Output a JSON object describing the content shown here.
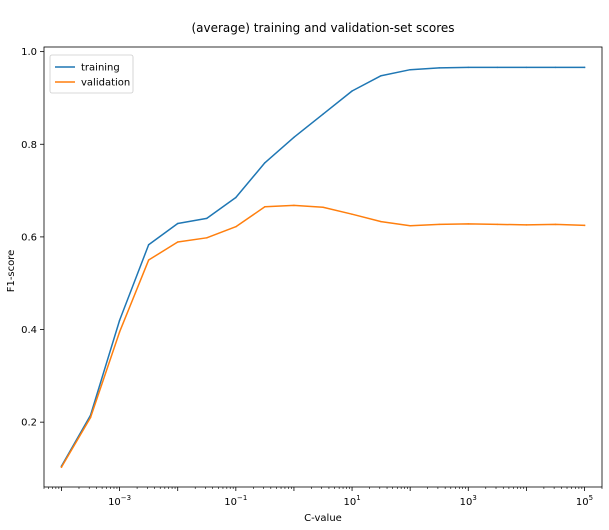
{
  "chart_data": {
    "type": "line",
    "title": "(average) training and validation-set scores",
    "xlabel": "C-value",
    "ylabel": "F1-score",
    "x_scale": "log",
    "xlim": [
      5e-05,
      200000
    ],
    "ylim": [
      0.06,
      1.01
    ],
    "x": [
      0.0001,
      0.000316,
      0.001,
      0.00316,
      0.01,
      0.0316,
      0.1,
      0.316,
      1,
      3.16,
      10,
      31.6,
      100,
      316,
      1000,
      3162,
      10000,
      31623,
      100000
    ],
    "series": [
      {
        "name": "training",
        "color": "#1f77b4",
        "values": [
          0.105,
          0.215,
          0.42,
          0.583,
          0.629,
          0.64,
          0.685,
          0.76,
          0.815,
          0.865,
          0.915,
          0.948,
          0.961,
          0.965,
          0.966,
          0.966,
          0.966,
          0.966,
          0.966
        ]
      },
      {
        "name": "validation",
        "color": "#ff7f0e",
        "values": [
          0.103,
          0.21,
          0.395,
          0.55,
          0.589,
          0.598,
          0.622,
          0.665,
          0.668,
          0.664,
          0.649,
          0.633,
          0.624,
          0.627,
          0.628,
          0.627,
          0.626,
          0.627,
          0.625
        ]
      }
    ],
    "x_ticks": [
      {
        "value": 0.001,
        "base": "10",
        "exp": "−3"
      },
      {
        "value": 0.1,
        "base": "10",
        "exp": "−1"
      },
      {
        "value": 10,
        "base": "10",
        "exp": "1"
      },
      {
        "value": 1000,
        "base": "10",
        "exp": "3"
      },
      {
        "value": 100000,
        "base": "10",
        "exp": "5"
      }
    ],
    "y_ticks": [
      {
        "value": 0.2,
        "label": "0.2"
      },
      {
        "value": 0.4,
        "label": "0.4"
      },
      {
        "value": 0.6,
        "label": "0.6"
      },
      {
        "value": 0.8,
        "label": "0.8"
      },
      {
        "value": 1.0,
        "label": "1.0"
      }
    ],
    "legend": "top-left",
    "grid": false
  }
}
